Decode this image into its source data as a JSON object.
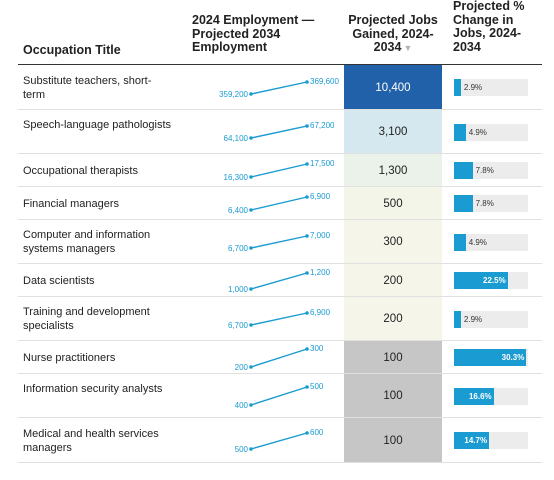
{
  "headers": {
    "occupation": "Occupation Title",
    "employment": "2024 Employment — Projected 2034 Employment",
    "jobs": "Projected Jobs Gained, 2024-2034",
    "pct": "Projected % Change in Jobs, 2024-2034",
    "sort_icon": "sort-descending-icon"
  },
  "chart_data": {
    "type": "table",
    "columns": [
      "Occupation Title",
      "2024 Employment — Projected 2034 Employment",
      "Projected Jobs Gained, 2024-2034",
      "Projected % Change in Jobs, 2024-2034"
    ],
    "rows": [
      {
        "occupation": "Substitute teachers, short-term",
        "emp_2024": 359200,
        "emp_2034": 369600,
        "emp_2024_label": "359,200",
        "emp_2034_label": "369,600",
        "jobs_gained": 10400,
        "jobs_label": "10,400",
        "pct_change": 2.9,
        "pct_label": "2.9%",
        "cell_color": "#2161aa",
        "text_color": "#ffffff"
      },
      {
        "occupation": "Speech-language pathologists",
        "emp_2024": 64100,
        "emp_2034": 67200,
        "emp_2024_label": "64,100",
        "emp_2034_label": "67,200",
        "jobs_gained": 3100,
        "jobs_label": "3,100",
        "pct_change": 4.9,
        "pct_label": "4.9%",
        "cell_color": "#d5e8ef",
        "text_color": "#222222"
      },
      {
        "occupation": "Occupational therapists",
        "emp_2024": 16300,
        "emp_2034": 17500,
        "emp_2024_label": "16,300",
        "emp_2034_label": "17,500",
        "jobs_gained": 1300,
        "jobs_label": "1,300",
        "pct_change": 7.8,
        "pct_label": "7.8%",
        "cell_color": "#eaf2ea",
        "text_color": "#222222"
      },
      {
        "occupation": "Financial managers",
        "emp_2024": 6400,
        "emp_2034": 6900,
        "emp_2024_label": "6,400",
        "emp_2034_label": "6,900",
        "jobs_gained": 500,
        "jobs_label": "500",
        "pct_change": 7.8,
        "pct_label": "7.8%",
        "cell_color": "#f3f5e8",
        "text_color": "#222222"
      },
      {
        "occupation": "Computer and information systems managers",
        "emp_2024": 6700,
        "emp_2034": 7000,
        "emp_2024_label": "6,700",
        "emp_2034_label": "7,000",
        "jobs_gained": 300,
        "jobs_label": "300",
        "pct_change": 4.9,
        "pct_label": "4.9%",
        "cell_color": "#f5f5ea",
        "text_color": "#222222"
      },
      {
        "occupation": "Data scientists",
        "emp_2024": 1000,
        "emp_2034": 1200,
        "emp_2024_label": "1,000",
        "emp_2034_label": "1,200",
        "jobs_gained": 200,
        "jobs_label": "200",
        "pct_change": 22.5,
        "pct_label": "22.5%",
        "cell_color": "#f5f5ea",
        "text_color": "#222222"
      },
      {
        "occupation": "Training and development specialists",
        "emp_2024": 6700,
        "emp_2034": 6900,
        "emp_2024_label": "6,700",
        "emp_2034_label": "6,900",
        "jobs_gained": 200,
        "jobs_label": "200",
        "pct_change": 2.9,
        "pct_label": "2.9%",
        "cell_color": "#f5f5ea",
        "text_color": "#222222"
      },
      {
        "occupation": "Nurse practitioners",
        "emp_2024": 200,
        "emp_2034": 300,
        "emp_2024_label": "200",
        "emp_2034_label": "300",
        "jobs_gained": 100,
        "jobs_label": "100",
        "pct_change": 30.3,
        "pct_label": "30.3%",
        "cell_color": "#c6c6c6",
        "text_color": "#222222"
      },
      {
        "occupation": "Information security analysts",
        "emp_2024": 400,
        "emp_2034": 500,
        "emp_2024_label": "400",
        "emp_2034_label": "500",
        "jobs_gained": 100,
        "jobs_label": "100",
        "pct_change": 16.6,
        "pct_label": "16.6%",
        "cell_color": "#c6c6c6",
        "text_color": "#222222"
      },
      {
        "occupation": "Medical and health services managers",
        "emp_2024": 500,
        "emp_2034": 600,
        "emp_2024_label": "500",
        "emp_2034_label": "600",
        "jobs_gained": 100,
        "jobs_label": "100",
        "pct_change": 14.7,
        "pct_label": "14.7%",
        "cell_color": "#c6c6c6",
        "text_color": "#222222"
      }
    ],
    "pct_scale_max": 31,
    "colors": {
      "accent": "#1a9bd1",
      "bar_track": "#ececec"
    }
  }
}
